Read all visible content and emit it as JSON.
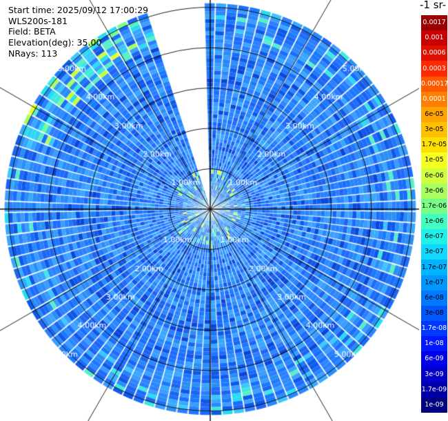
{
  "info": {
    "start_time": "Start time: 2025/09/12 17:00:29",
    "instrument": "WLS200s-181",
    "field": "Field: BETA",
    "elevation": "Elevation(deg): 35.00",
    "nrays": "NRays: 113"
  },
  "colorbar": {
    "title": "-1 sr-",
    "labels": [
      "0.0017",
      "0.001",
      "0.0006",
      "0.0003",
      "0.00017",
      "0.0001",
      "6e-05",
      "3e-05",
      "1.7e-05",
      "1e-05",
      "6e-06",
      "3e-06",
      "1.7e-06",
      "1e-06",
      "6e-07",
      "3e-07",
      "1.7e-07",
      "1e-07",
      "6e-08",
      "3e-08",
      "1.7e-08",
      "1e-08",
      "6e-09",
      "3e-09",
      "1.7e-09",
      "1e-09"
    ],
    "colors": [
      "#9a0000",
      "#c80000",
      "#e01000",
      "#ff2800",
      "#ff5a00",
      "#ff8000",
      "#ffa400",
      "#ffc000",
      "#ffe000",
      "#f5ff20",
      "#d0ff40",
      "#a8ff60",
      "#78ff88",
      "#40ffc0",
      "#20f0e8",
      "#10d8ff",
      "#00b4ff",
      "#0098ff",
      "#0078ff",
      "#0058ff",
      "#0038ff",
      "#0018ff",
      "#0000e8",
      "#0000c8",
      "#0000a8",
      "#000080"
    ],
    "white_text_labels": [
      "0.0017",
      "0.001",
      "0.0006",
      "0.0003",
      "0.00017",
      "0.0001",
      "1.7e-08",
      "1e-08",
      "6e-09",
      "3e-09",
      "1.7e-09",
      "1e-09"
    ]
  },
  "chart_data": {
    "type": "polar_ppi",
    "field": "BETA",
    "elevation_deg": 35.0,
    "nrays": 113,
    "range_rings_km": [
      1,
      2,
      3,
      4,
      5
    ],
    "ring_labels": [
      "1.00km",
      "2.00km",
      "3.00km",
      "4.00km",
      "5.00km"
    ],
    "max_range_km": 5.1,
    "angular_grid_deg": 30,
    "blank_sector_deg": [
      -19,
      -3
    ],
    "dominant_value_range": [
      3e-08,
      1e-07
    ],
    "enhanced_regions": [
      {
        "description": "near-field aerosol",
        "range_km": [
          0.0,
          1.0
        ],
        "value_range": [
          3e-07,
          3e-06
        ]
      },
      {
        "description": "outer edge north-west",
        "range_km": [
          4.3,
          5.1
        ],
        "azimuth_deg": [
          -70,
          -25
        ],
        "value_range": [
          1.7e-07,
          1.7e-05
        ]
      }
    ]
  }
}
